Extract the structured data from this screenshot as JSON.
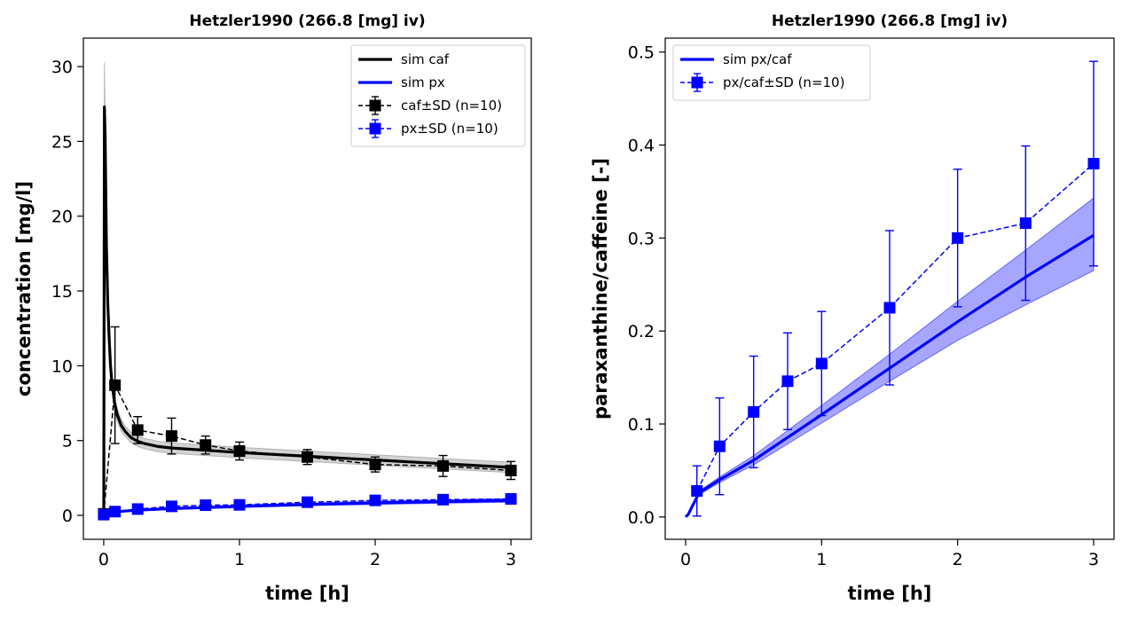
{
  "chart_data": [
    {
      "type": "line",
      "title": "Hetzler1990 (266.8 [mg] iv)",
      "xlabel": "time [h]",
      "ylabel": "concentration [mg/l]",
      "xlim": [
        -0.15,
        3.15
      ],
      "ylim": [
        -1.6,
        31.9
      ],
      "xticks": [
        0,
        1,
        2,
        3
      ],
      "yticks": [
        0,
        5,
        10,
        15,
        20,
        25,
        30
      ],
      "grid": false,
      "legend_position": "top-right",
      "series": [
        {
          "name": "sim caf",
          "kind": "line",
          "color": "#000000",
          "x": [
            0,
            0.005,
            0.01,
            0.015,
            0.02,
            0.03,
            0.04,
            0.05,
            0.06,
            0.08,
            0.1,
            0.13,
            0.16,
            0.2,
            0.25,
            0.3,
            0.4,
            0.5,
            0.75,
            1.0,
            1.5,
            2.0,
            2.5,
            3.0
          ],
          "y": [
            0,
            27.3,
            25.5,
            21.5,
            18.0,
            14.2,
            11.8,
            10.0,
            8.9,
            7.5,
            6.7,
            6.0,
            5.6,
            5.2,
            4.95,
            4.8,
            4.6,
            4.5,
            4.35,
            4.2,
            3.95,
            3.7,
            3.45,
            3.2
          ],
          "band": {
            "color": "#808080",
            "lower": [
              0,
              26.0,
              24.0,
              20.3,
              17.0,
              13.4,
              11.1,
              9.4,
              8.4,
              7.0,
              6.3,
              5.6,
              5.25,
              4.85,
              4.6,
              4.45,
              4.25,
              4.15,
              4.0,
              3.85,
              3.6,
              3.35,
              3.1,
              2.85
            ],
            "upper": [
              0,
              30.3,
              27.0,
              22.7,
              19.0,
              15.0,
              12.5,
              10.6,
              9.4,
              8.0,
              7.1,
              6.4,
              5.95,
              5.55,
              5.3,
              5.15,
              4.95,
              4.85,
              4.7,
              4.55,
              4.3,
              4.05,
              3.8,
              3.55
            ]
          }
        },
        {
          "name": "sim px",
          "kind": "line",
          "color": "#0000ff",
          "x": [
            0,
            0.05,
            0.1,
            0.25,
            0.5,
            0.75,
            1.0,
            1.5,
            2.0,
            2.5,
            3.0
          ],
          "y": [
            0,
            0.18,
            0.25,
            0.35,
            0.45,
            0.52,
            0.6,
            0.73,
            0.83,
            0.92,
            1.0
          ],
          "band": {
            "color": "#0000ff",
            "lower": [
              0,
              0.15,
              0.21,
              0.3,
              0.39,
              0.45,
              0.52,
              0.64,
              0.73,
              0.81,
              0.88
            ],
            "upper": [
              0,
              0.21,
              0.29,
              0.4,
              0.51,
              0.59,
              0.68,
              0.82,
              0.93,
              1.03,
              1.12
            ]
          }
        },
        {
          "name": "caf±SD (n=10)",
          "kind": "errorbar",
          "color": "#000000",
          "x": [
            0,
            0.083,
            0.25,
            0.5,
            0.75,
            1.0,
            1.5,
            2.0,
            2.5,
            3.0
          ],
          "y": [
            0.1,
            8.7,
            5.7,
            5.3,
            4.7,
            4.3,
            3.9,
            3.4,
            3.3,
            3.0
          ],
          "sd": [
            0,
            3.9,
            0.9,
            1.2,
            0.6,
            0.6,
            0.5,
            0.5,
            0.7,
            0.6
          ]
        },
        {
          "name": "px±SD (n=10)",
          "kind": "errorbar",
          "color": "#0000ff",
          "x": [
            0,
            0.083,
            0.25,
            0.5,
            0.75,
            1.0,
            1.5,
            2.0,
            2.5,
            3.0
          ],
          "y": [
            0.05,
            0.25,
            0.42,
            0.6,
            0.68,
            0.7,
            0.88,
            1.0,
            1.05,
            1.1
          ],
          "sd": [
            0,
            0.08,
            0.1,
            0.12,
            0.1,
            0.12,
            0.1,
            0.12,
            0.15,
            0.15
          ]
        }
      ]
    },
    {
      "type": "line",
      "title": "Hetzler1990 (266.8 [mg] iv)",
      "xlabel": "time [h]",
      "ylabel": "paraxanthine/caffeine [-]",
      "xlim": [
        -0.15,
        3.15
      ],
      "ylim": [
        -0.024,
        0.515
      ],
      "xticks": [
        0,
        1,
        2,
        3
      ],
      "yticks": [
        0.0,
        0.1,
        0.2,
        0.3,
        0.4,
        0.5
      ],
      "ytick_labels": [
        "0.0",
        "0.1",
        "0.2",
        "0.3",
        "0.4",
        "0.5"
      ],
      "grid": false,
      "legend_position": "top-left",
      "series": [
        {
          "name": "sim px/caf",
          "kind": "line",
          "color": "#0000ff",
          "x": [
            0,
            0.02,
            0.05,
            0.1,
            0.25,
            0.5,
            1.0,
            1.5,
            2.0,
            2.5,
            3.0
          ],
          "y": [
            0,
            0.003,
            0.012,
            0.026,
            0.04,
            0.061,
            0.11,
            0.16,
            0.21,
            0.258,
            0.303
          ],
          "band": {
            "color": "#0000ff",
            "lower": [
              0,
              0.003,
              0.011,
              0.024,
              0.037,
              0.056,
              0.101,
              0.146,
              0.19,
              0.228,
              0.265
            ],
            "upper": [
              0,
              0.004,
              0.013,
              0.028,
              0.043,
              0.066,
              0.12,
              0.175,
              0.232,
              0.287,
              0.343
            ]
          }
        },
        {
          "name": "px/caf±SD (n=10)",
          "kind": "errorbar",
          "color": "#0000ff",
          "x": [
            0.083,
            0.25,
            0.5,
            0.75,
            1.0,
            1.5,
            2.0,
            2.5,
            3.0
          ],
          "y": [
            0.028,
            0.076,
            0.113,
            0.146,
            0.165,
            0.225,
            0.3,
            0.316,
            0.38
          ],
          "sd": [
            0.027,
            0.052,
            0.06,
            0.052,
            0.056,
            0.083,
            0.074,
            0.083,
            0.11
          ]
        }
      ]
    }
  ]
}
